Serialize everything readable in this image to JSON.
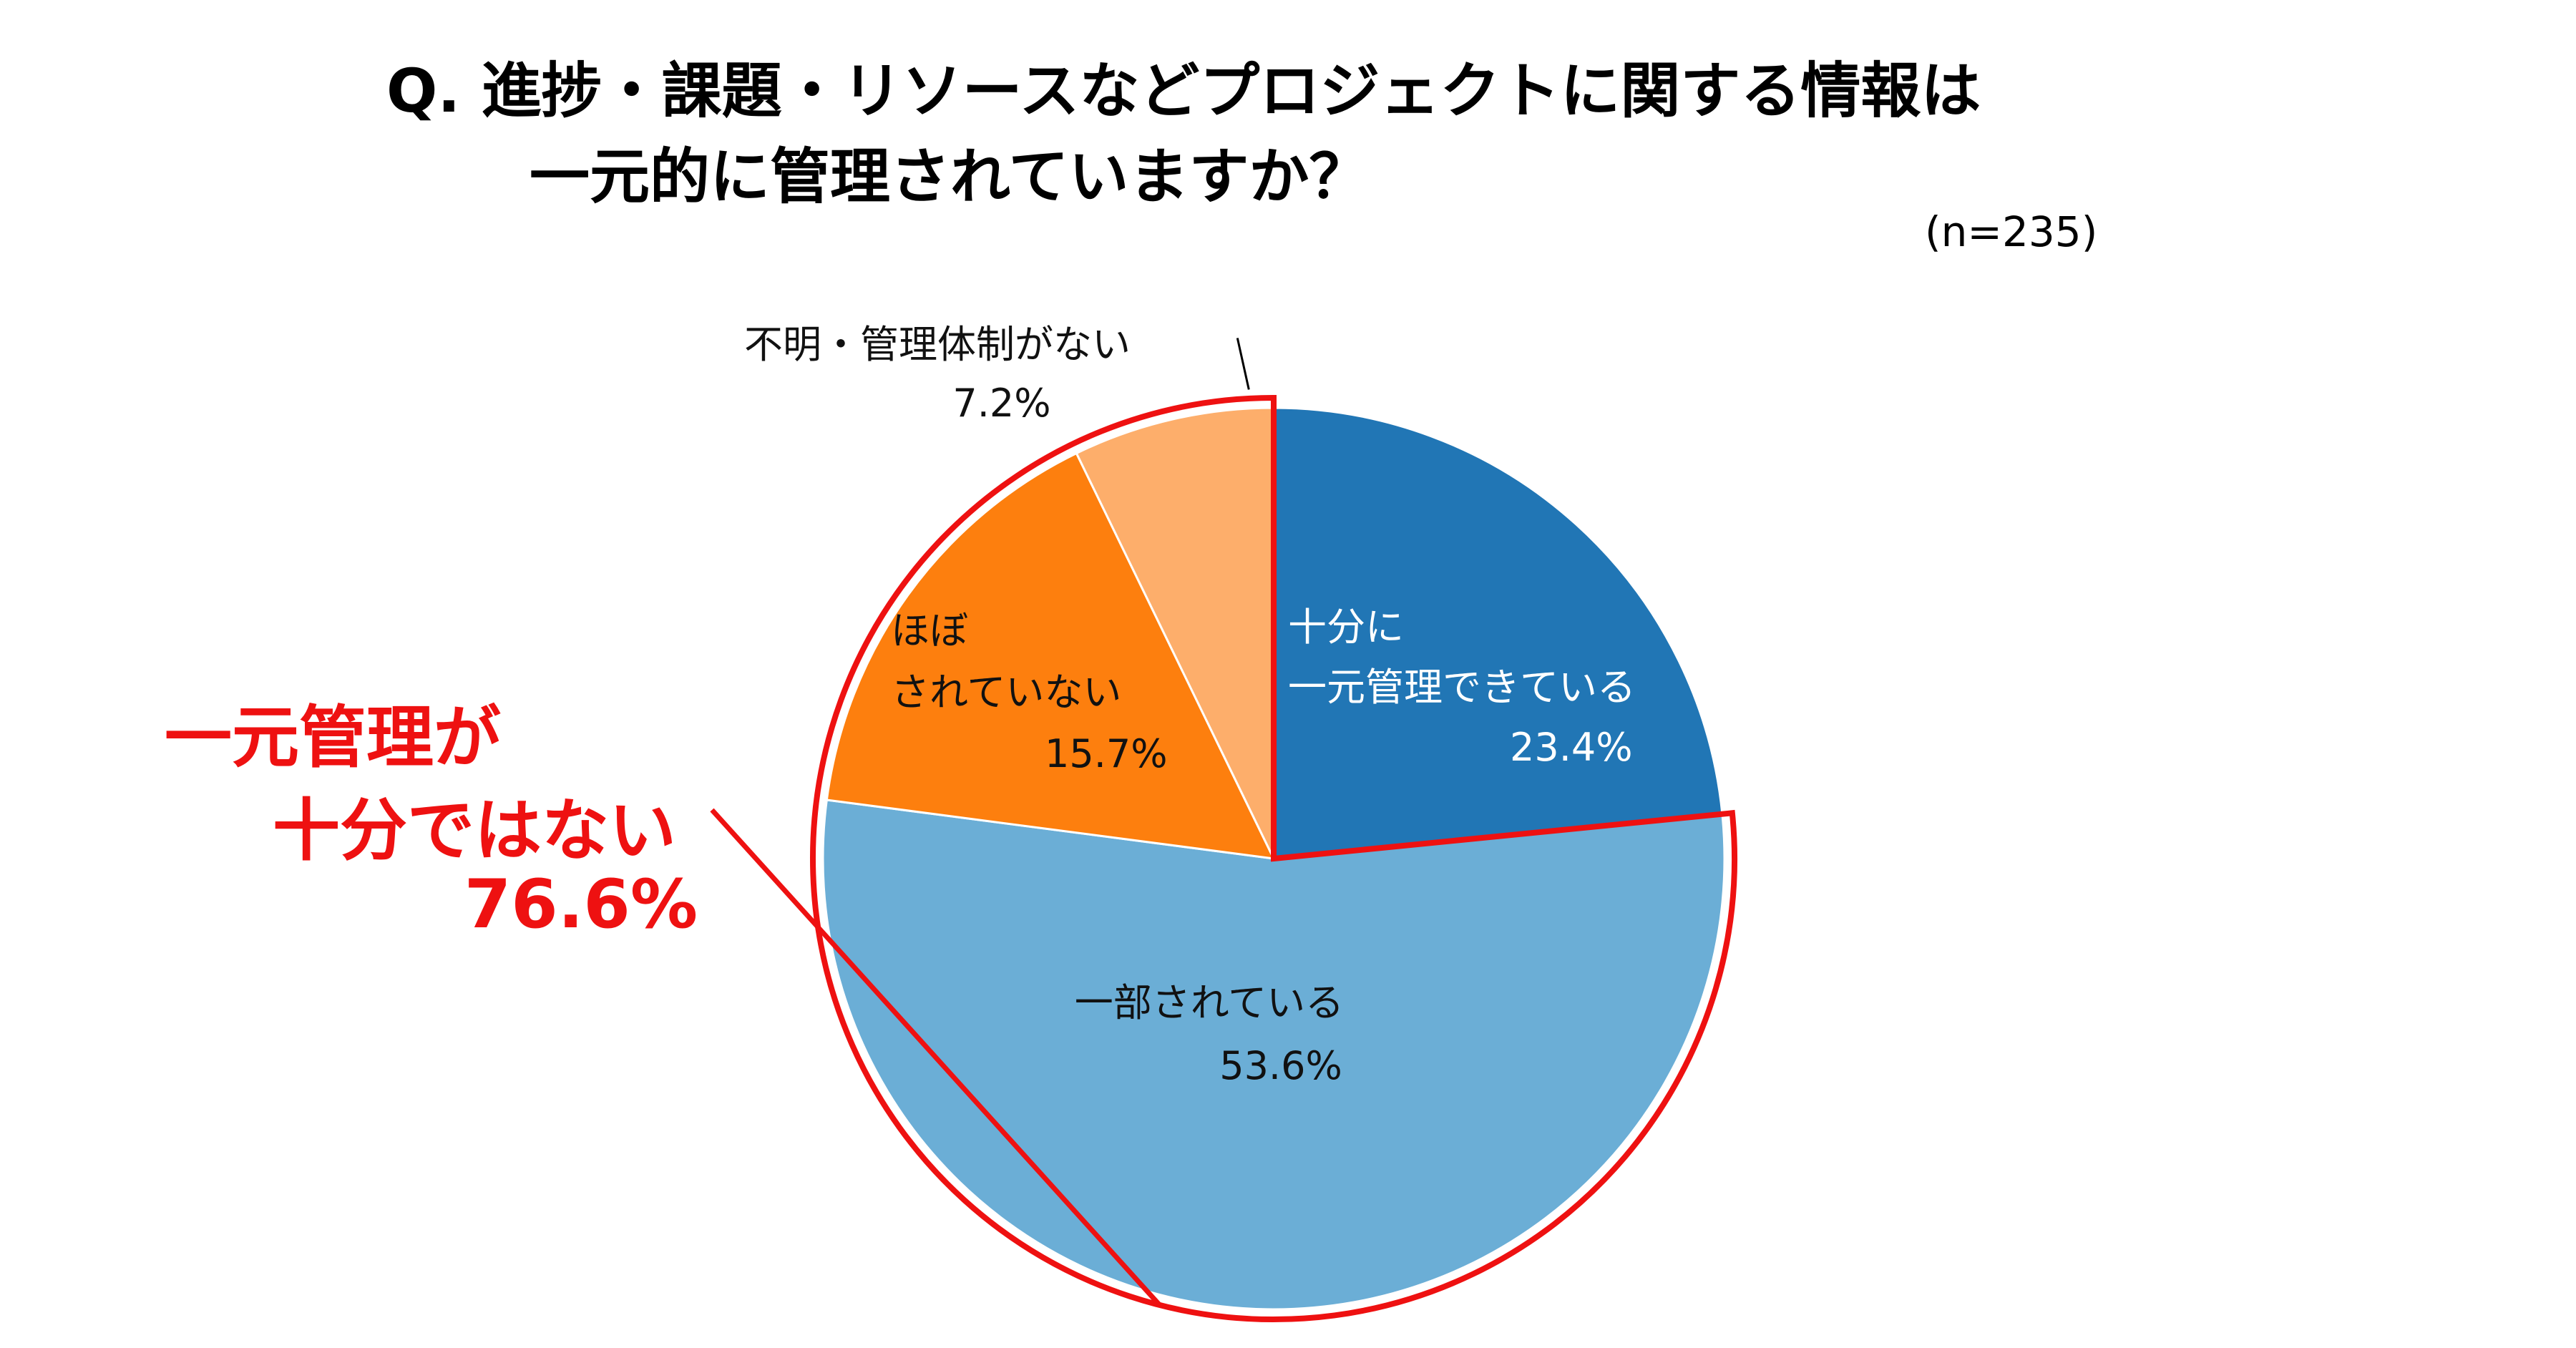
{
  "chart_data": {
    "type": "pie",
    "title_lines": [
      "Q.  進捗・課題・リソースなどプロジェクトに関する情報は",
      "一元的に管理されていますか？"
    ],
    "sample_size": "(n=235)",
    "slices": [
      {
        "label_lines": [
          "十分に",
          "一元管理できている"
        ],
        "value": 23.4,
        "value_label": "23.4%",
        "color": "#2176b5"
      },
      {
        "label_lines": [
          "一部されている"
        ],
        "value": 53.6,
        "value_label": "53.6%",
        "color": "#6baed6"
      },
      {
        "label_lines": [
          "ほぼ",
          "されていない"
        ],
        "value": 15.7,
        "value_label": "15.7%",
        "color": "#fd7f0e"
      },
      {
        "label_lines": [
          "不明・管理体制がない"
        ],
        "value": 7.2,
        "value_label": "7.2%",
        "color": "#fdae6b"
      }
    ],
    "highlight": {
      "label_lines": [
        "一元管理が",
        "十分ではない",
        "76.6%"
      ],
      "slices": [
        1,
        2,
        3
      ],
      "value": 76.6,
      "color": "#ee1111"
    }
  }
}
